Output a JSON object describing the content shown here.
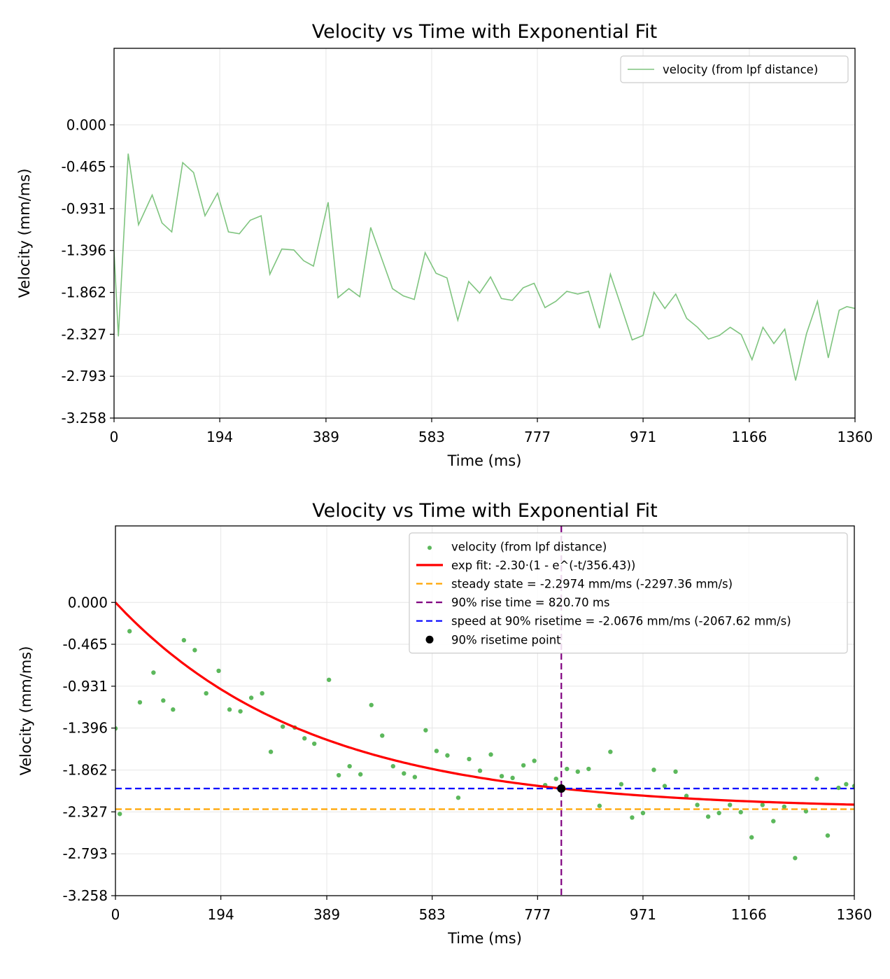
{
  "chart_data": [
    {
      "type": "line",
      "title": "Velocity vs Time with Exponential Fit",
      "xlabel": "Time (ms)",
      "ylabel": "Velocity (mm/ms)",
      "xlim": [
        0,
        1360
      ],
      "ylim": [
        -3.258,
        0.85
      ],
      "xticks": [
        "0",
        "194",
        "389",
        "583",
        "777",
        "971",
        "1166",
        "1360"
      ],
      "yticks": [
        "0.000",
        "-0.465",
        "-0.931",
        "-1.396",
        "-1.862",
        "-2.327",
        "-2.793",
        "-3.258"
      ],
      "grid": true,
      "legend_position": "top-right",
      "series": [
        {
          "name": "velocity (from lpf distance)",
          "style": "line",
          "color": "#7fc47f",
          "x": [
            0,
            8,
            26,
            45,
            70,
            88,
            106,
            126,
            146,
            167,
            190,
            210,
            230,
            250,
            270,
            286,
            308,
            330,
            348,
            366,
            393,
            411,
            431,
            451,
            471,
            491,
            511,
            531,
            551,
            571,
            591,
            611,
            631,
            651,
            671,
            691,
            711,
            731,
            751,
            771,
            791,
            811,
            831,
            851,
            871,
            891,
            911,
            931,
            951,
            971,
            991,
            1011,
            1031,
            1051,
            1071,
            1091,
            1111,
            1131,
            1151,
            1171,
            1191,
            1211,
            1231,
            1251,
            1271,
            1291,
            1311,
            1331,
            1345,
            1360
          ],
          "values": [
            -1.4,
            -2.35,
            -0.32,
            -1.11,
            -0.78,
            -1.09,
            -1.19,
            -0.42,
            -0.53,
            -1.01,
            -0.76,
            -1.19,
            -1.21,
            -1.06,
            -1.01,
            -1.66,
            -1.38,
            -1.39,
            -1.51,
            -1.57,
            -0.86,
            -1.92,
            -1.82,
            -1.91,
            -1.14,
            -1.48,
            -1.82,
            -1.9,
            -1.94,
            -1.42,
            -1.65,
            -1.7,
            -2.17,
            -1.74,
            -1.87,
            -1.69,
            -1.93,
            -1.95,
            -1.81,
            -1.76,
            -2.03,
            -1.96,
            -1.85,
            -1.88,
            -1.85,
            -2.26,
            -1.66,
            -2.02,
            -2.39,
            -2.34,
            -1.86,
            -2.04,
            -1.88,
            -2.15,
            -2.25,
            -2.38,
            -2.34,
            -2.25,
            -2.33,
            -2.61,
            -2.25,
            -2.43,
            -2.27,
            -2.84,
            -2.32,
            -1.96,
            -2.59,
            -2.06,
            -2.02,
            -2.04
          ]
        }
      ]
    },
    {
      "type": "scatter",
      "title": "Velocity vs Time with Exponential Fit",
      "xlabel": "Time (ms)",
      "ylabel": "Velocity (mm/ms)",
      "xlim": [
        0,
        1360
      ],
      "ylim": [
        -3.258,
        0.85
      ],
      "xticks": [
        "0",
        "194",
        "389",
        "583",
        "777",
        "971",
        "1166",
        "1360"
      ],
      "yticks": [
        "0.000",
        "-0.465",
        "-0.931",
        "-1.396",
        "-1.862",
        "-2.327",
        "-2.793",
        "-3.258"
      ],
      "grid": true,
      "legend_position": "top-right",
      "series": [
        {
          "name": "velocity (from lpf distance)",
          "style": "scatter",
          "color": "#5cb85c",
          "x": [
            0,
            8,
            26,
            45,
            70,
            88,
            106,
            126,
            146,
            167,
            190,
            210,
            230,
            250,
            270,
            286,
            308,
            330,
            348,
            366,
            393,
            411,
            431,
            451,
            471,
            491,
            511,
            531,
            551,
            571,
            591,
            611,
            631,
            651,
            671,
            691,
            711,
            731,
            751,
            771,
            791,
            811,
            831,
            851,
            871,
            891,
            911,
            931,
            951,
            971,
            991,
            1011,
            1031,
            1051,
            1071,
            1091,
            1111,
            1131,
            1151,
            1171,
            1191,
            1211,
            1231,
            1251,
            1271,
            1291,
            1311,
            1331,
            1345,
            1360
          ],
          "values": [
            -1.4,
            -2.35,
            -0.32,
            -1.11,
            -0.78,
            -1.09,
            -1.19,
            -0.42,
            -0.53,
            -1.01,
            -0.76,
            -1.19,
            -1.21,
            -1.06,
            -1.01,
            -1.66,
            -1.38,
            -1.39,
            -1.51,
            -1.57,
            -0.86,
            -1.92,
            -1.82,
            -1.91,
            -1.14,
            -1.48,
            -1.82,
            -1.9,
            -1.94,
            -1.42,
            -1.65,
            -1.7,
            -2.17,
            -1.74,
            -1.87,
            -1.69,
            -1.93,
            -1.95,
            -1.81,
            -1.76,
            -2.03,
            -1.96,
            -1.85,
            -1.88,
            -1.85,
            -2.26,
            -1.66,
            -2.02,
            -2.39,
            -2.34,
            -1.86,
            -2.04,
            -1.88,
            -2.15,
            -2.25,
            -2.38,
            -2.34,
            -2.25,
            -2.33,
            -2.61,
            -2.25,
            -2.43,
            -2.27,
            -2.84,
            -2.32,
            -1.96,
            -2.59,
            -2.06,
            -2.02,
            -2.04
          ]
        },
        {
          "name": "exp fit: -2.30·(1 - e^(-t/356.43))",
          "style": "curve",
          "color": "#ff0000",
          "amplitude": -2.2974,
          "tau": 356.43
        },
        {
          "name": "steady state = -2.2974 mm/ms (-2297.36 mm/s)",
          "style": "hline",
          "color": "#ffa500",
          "y": -2.2974
        },
        {
          "name": "90% rise time = 820.70 ms",
          "style": "vline",
          "color": "#800080",
          "x": 820.7
        },
        {
          "name": "speed at 90% risetime = -2.0676 mm/ms (-2067.62 mm/s)",
          "style": "hline",
          "color": "#0000ff",
          "y": -2.0676
        },
        {
          "name": "90% risetime point",
          "style": "point",
          "color": "#000000",
          "x": 820.7,
          "y": -2.0676
        }
      ]
    }
  ]
}
